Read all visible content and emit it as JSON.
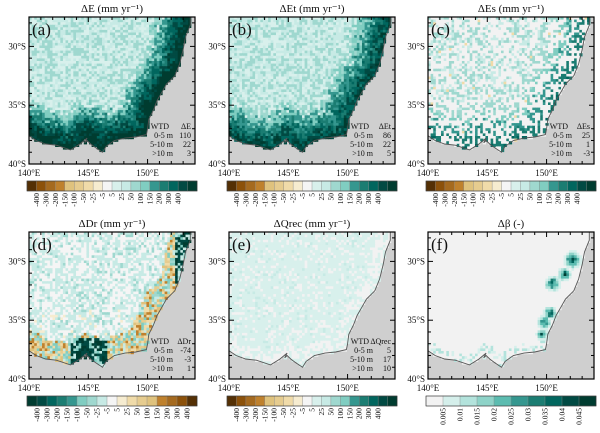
{
  "figure": {
    "panel_count": 6,
    "lat_ticks": [
      "30°S",
      "35°S",
      "40°S"
    ],
    "lon_ticks": [
      "140°E",
      "145°E",
      "150°E"
    ],
    "land_colors": {
      "ocean": "#cfcfcf",
      "background_land": "#f2f2f2",
      "coastline": "#555555"
    }
  },
  "palettes": {
    "diverging_brown_teal": [
      "#543005",
      "#8c510a",
      "#a56a1f",
      "#bf812d",
      "#dfc27d",
      "#e6cc8f",
      "#f0dba9",
      "#f6ecd0",
      "#f5f5f5",
      "#d8f0ec",
      "#c7eae5",
      "#9fd8cf",
      "#80cdc1",
      "#35978f",
      "#1b7d72",
      "#01665e",
      "#014a43",
      "#003c30"
    ],
    "diverging_teal_brown": [
      "#003c30",
      "#014a43",
      "#01665e",
      "#1b7d72",
      "#35978f",
      "#80cdc1",
      "#9fd8cf",
      "#c7eae5",
      "#f5f5f5",
      "#f6ecd0",
      "#f0dba9",
      "#e6cc8f",
      "#dfc27d",
      "#bf812d",
      "#a56a1f",
      "#8c510a",
      "#543005"
    ],
    "sequential_teal": [
      "#f2f2f2",
      "#d5efeb",
      "#b3e3dc",
      "#8ed3c8",
      "#5cbcb0",
      "#35978f",
      "#1b7d72",
      "#01665e",
      "#014a43",
      "#003c30"
    ]
  },
  "chart_data": [
    {
      "type": "heatmap",
      "panel_label": "(a)",
      "title": "ΔE (mm yr⁻¹)",
      "variable": "ΔE",
      "units": "mm yr-1",
      "x_range": [
        140,
        154
      ],
      "y_range": [
        -40,
        -27.5
      ],
      "xticks": [
        "140°E",
        "145°E",
        "150°E"
      ],
      "yticks": [
        "30°S",
        "35°S",
        "40°S"
      ],
      "colorbar": {
        "palette": "diverging_brown_teal",
        "labels": [
          "-400",
          "-300",
          "-200",
          "-150",
          "-100",
          "-50",
          "-25",
          "-5",
          "5",
          "25",
          "50",
          "100",
          "150",
          "200",
          "300",
          "400"
        ]
      },
      "pattern": "coastal_positive_strong",
      "legend": {
        "header": [
          "WTD",
          "ΔE"
        ],
        "rows": [
          [
            "0-5 m",
            "110"
          ],
          [
            "5-10 m",
            "22"
          ],
          [
            ">10 m",
            "3"
          ]
        ]
      }
    },
    {
      "type": "heatmap",
      "panel_label": "(b)",
      "title": "ΔEt (mm yr⁻¹)",
      "variable": "ΔEt",
      "units": "mm yr-1",
      "x_range": [
        140,
        154
      ],
      "y_range": [
        -40,
        -27.5
      ],
      "xticks": [
        "140°E",
        "145°E",
        "150°E"
      ],
      "yticks": [
        "30°S",
        "35°S",
        "40°S"
      ],
      "colorbar": {
        "palette": "diverging_brown_teal",
        "labels": [
          "-400",
          "-300",
          "-200",
          "-150",
          "-100",
          "-50",
          "-25",
          "-5",
          "5",
          "25",
          "50",
          "100",
          "150",
          "200",
          "300",
          "400"
        ]
      },
      "pattern": "coastal_positive_medium",
      "legend": {
        "header": [
          "WTD",
          "ΔEt"
        ],
        "rows": [
          [
            "0-5 m",
            "86"
          ],
          [
            "5-10 m",
            "22"
          ],
          [
            ">10 m",
            "5"
          ]
        ]
      }
    },
    {
      "type": "heatmap",
      "panel_label": "(c)",
      "title": "ΔEs (mm yr⁻¹)",
      "variable": "ΔEs",
      "units": "mm yr-1",
      "x_range": [
        140,
        154
      ],
      "y_range": [
        -40,
        -27.5
      ],
      "xticks": [
        "140°E",
        "145°E",
        "150°E"
      ],
      "yticks": [
        "30°S",
        "35°S",
        "40°S"
      ],
      "colorbar": {
        "palette": "diverging_brown_teal",
        "labels": [
          "-400",
          "-300",
          "-200",
          "-150",
          "-100",
          "-50",
          "-25",
          "-5",
          "5",
          "25",
          "50",
          "100",
          "150",
          "200",
          "300",
          "400"
        ]
      },
      "pattern": "coastal_positive_weak",
      "legend": {
        "header": [
          "WTD",
          "ΔEs"
        ],
        "rows": [
          [
            "0-5 m",
            "25"
          ],
          [
            "5-10 m",
            "1"
          ],
          [
            ">10 m",
            "-3"
          ]
        ]
      }
    },
    {
      "type": "heatmap",
      "panel_label": "(d)",
      "title": "ΔDr (mm yr⁻¹)",
      "variable": "ΔDr",
      "units": "mm yr-1",
      "x_range": [
        140,
        154
      ],
      "y_range": [
        -40,
        -27.5
      ],
      "xticks": [
        "140°E",
        "145°E",
        "150°E"
      ],
      "yticks": [
        "30°S",
        "35°S",
        "40°S"
      ],
      "colorbar": {
        "palette": "diverging_teal_brown",
        "labels": [
          "-400",
          "-300",
          "-200",
          "-150",
          "-100",
          "-50",
          "-25",
          "-5",
          "5",
          "25",
          "50",
          "100",
          "150",
          "200",
          "300",
          "400"
        ]
      },
      "pattern": "mixed_drainage",
      "legend": {
        "header": [
          "WTD",
          "ΔDr"
        ],
        "rows": [
          [
            "0-5 m",
            "-74"
          ],
          [
            "5-10 m",
            "-3"
          ],
          [
            ">10 m",
            "1"
          ]
        ]
      }
    },
    {
      "type": "heatmap",
      "panel_label": "(e)",
      "title": "ΔQrec (mm yr⁻¹)",
      "variable": "ΔQrec",
      "units": "mm yr-1",
      "x_range": [
        140,
        154
      ],
      "y_range": [
        -40,
        -27.5
      ],
      "xticks": [
        "140°E",
        "145°E",
        "150°E"
      ],
      "yticks": [
        "30°S",
        "35°S",
        "40°S"
      ],
      "colorbar": {
        "palette": "diverging_brown_teal",
        "labels": [
          "-400",
          "-300",
          "-200",
          "-150",
          "-100",
          "-50",
          "-25",
          "-5",
          "5",
          "25",
          "50",
          "100",
          "150",
          "200",
          "300",
          "400"
        ]
      },
      "pattern": "uniform_light",
      "legend": {
        "header": [
          "WTD",
          "ΔQrec"
        ],
        "rows": [
          [
            "0-5 m",
            "5"
          ],
          [
            "5-10 m",
            "17"
          ],
          [
            ">10 m",
            "10"
          ]
        ]
      }
    },
    {
      "type": "heatmap",
      "panel_label": "(f)",
      "title": "Δβ  (-)",
      "variable": "Δβ",
      "units": "-",
      "x_range": [
        140,
        154
      ],
      "y_range": [
        -40,
        -27.5
      ],
      "xticks": [
        "140°E",
        "145°E",
        "150°E"
      ],
      "yticks": [
        "30°S",
        "35°S",
        "40°S"
      ],
      "colorbar": {
        "palette": "sequential_teal",
        "labels": [
          "0.005",
          "0.01",
          "0.015",
          "0.02",
          "0.025",
          "0.03",
          "0.035",
          "0.04",
          "0.045"
        ]
      },
      "pattern": "patchy_east",
      "legend": null
    }
  ]
}
